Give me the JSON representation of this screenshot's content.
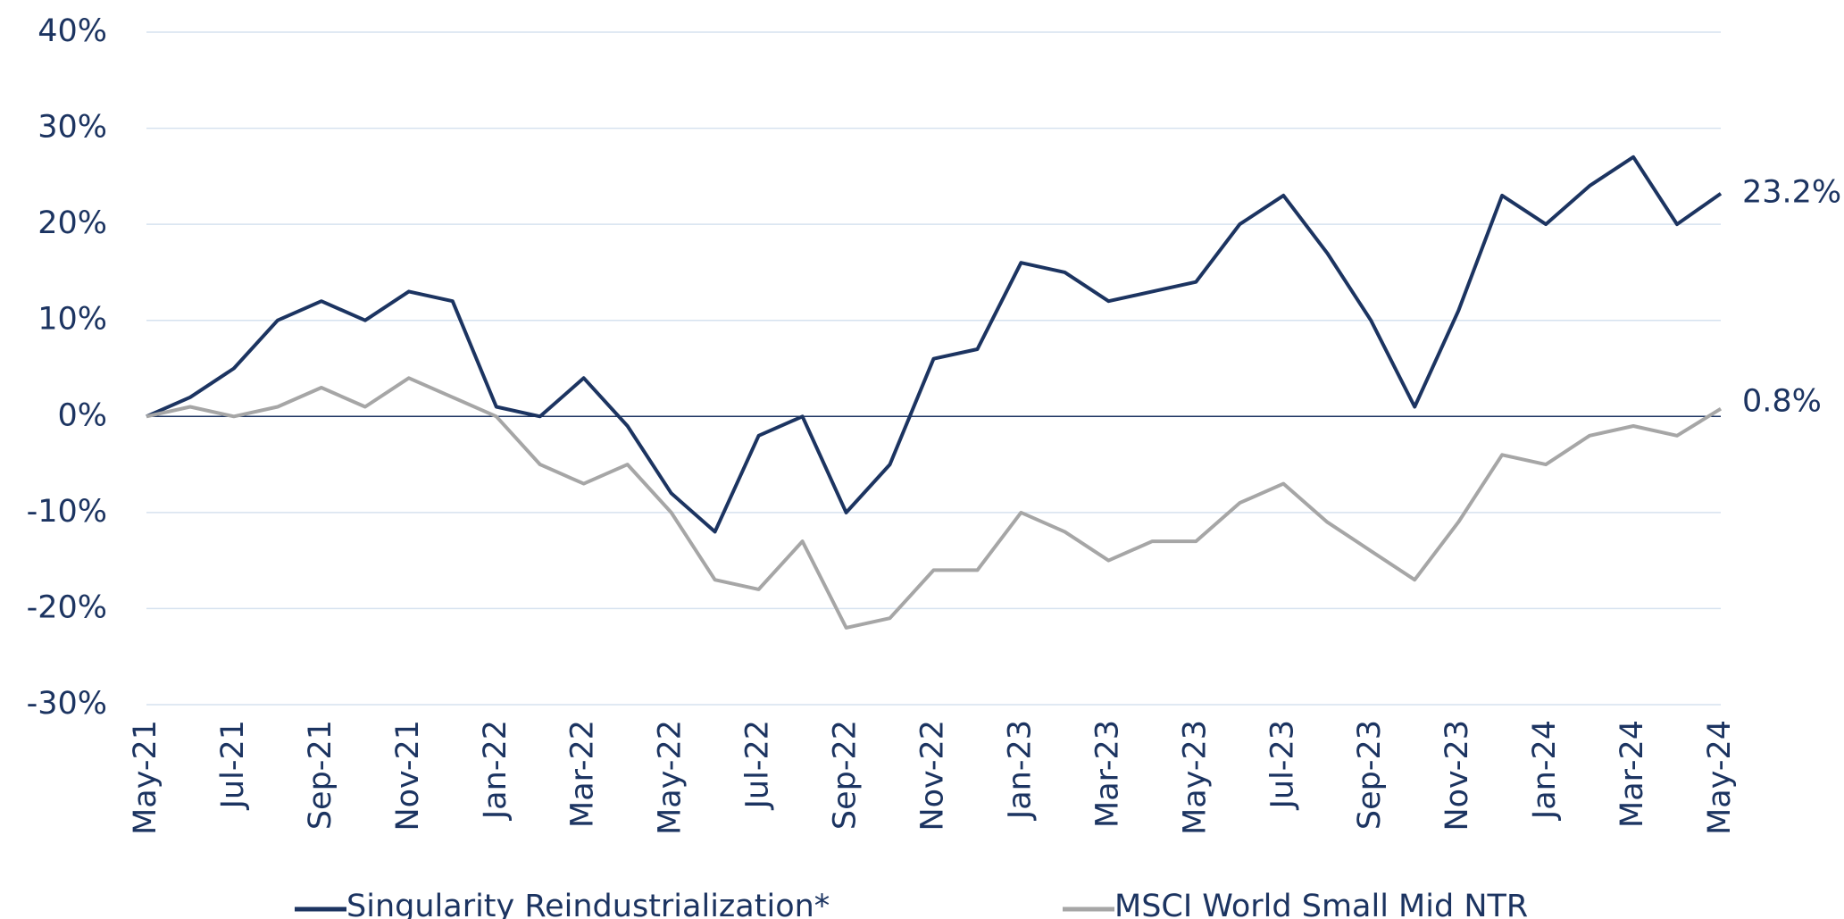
{
  "chart_data": {
    "type": "line",
    "categories": [
      "May-21",
      null,
      "Jul-21",
      null,
      "Sep-21",
      null,
      "Nov-21",
      null,
      "Jan-22",
      null,
      "Mar-22",
      null,
      "May-22",
      null,
      "Jul-22",
      null,
      "Sep-22",
      null,
      "Nov-22",
      null,
      "Jan-23",
      null,
      "Mar-23",
      null,
      "May-23",
      null,
      "Jul-23",
      null,
      "Sep-23",
      null,
      "Nov-23",
      null,
      "Jan-24",
      null,
      "Mar-24",
      null,
      "May-24"
    ],
    "series": [
      {
        "name": "Singularity Reindustrialization*",
        "color": "#1c3461",
        "end_label": "23.2%",
        "values": [
          0,
          2,
          5,
          10,
          12,
          10,
          13,
          12,
          1,
          0,
          4,
          -1,
          -8,
          -12,
          -2,
          0,
          -10,
          -5,
          6,
          7,
          16,
          15,
          12,
          13,
          14,
          20,
          23,
          17,
          10,
          1,
          11,
          23,
          20,
          24,
          27,
          20,
          23.2
        ]
      },
      {
        "name": "MSCI World Small Mid NTR",
        "color": "#a6a6a6",
        "end_label": "0.8%",
        "values": [
          0,
          1,
          0,
          1,
          3,
          1,
          4,
          2,
          0,
          -5,
          -7,
          -5,
          -10,
          -17,
          -18,
          -13,
          -22,
          -21,
          -16,
          -16,
          -10,
          -12,
          -15,
          -13,
          -13,
          -9,
          -7,
          -11,
          -14,
          -17,
          -11,
          -4,
          -5,
          -2,
          -1,
          -2,
          0.8
        ]
      }
    ],
    "ylim": [
      -30,
      40
    ],
    "yticks": [
      {
        "value": -30,
        "label": "-30%"
      },
      {
        "value": -20,
        "label": "-20%"
      },
      {
        "value": -10,
        "label": "-10%"
      },
      {
        "value": 0,
        "label": "0%"
      },
      {
        "value": 10,
        "label": "10%"
      },
      {
        "value": 20,
        "label": "20%"
      },
      {
        "value": 30,
        "label": "30%"
      },
      {
        "value": 40,
        "label": "40%"
      }
    ],
    "grid": true
  }
}
